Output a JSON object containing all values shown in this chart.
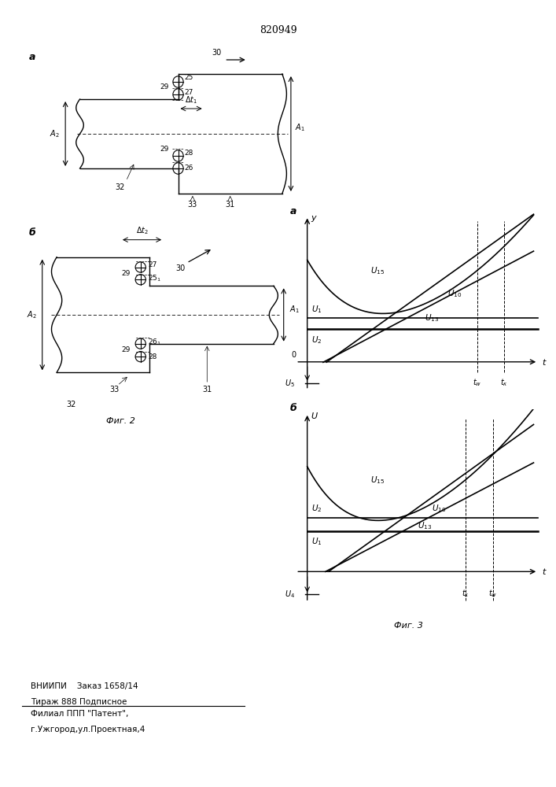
{
  "patent_number": "820949",
  "bg_color": "#ffffff",
  "line_color": "#000000",
  "fig_width": 7.07,
  "fig_height": 10.0,
  "bottom_text_line1": "ВНИИПИ    Заказ 1658/14",
  "bottom_text_line2": "Тираж 888 Подписное",
  "bottom_text_line3": "Филиал ППП \"Патент\",",
  "bottom_text_line4": "г.Ужгород,ул.Проектная,4"
}
